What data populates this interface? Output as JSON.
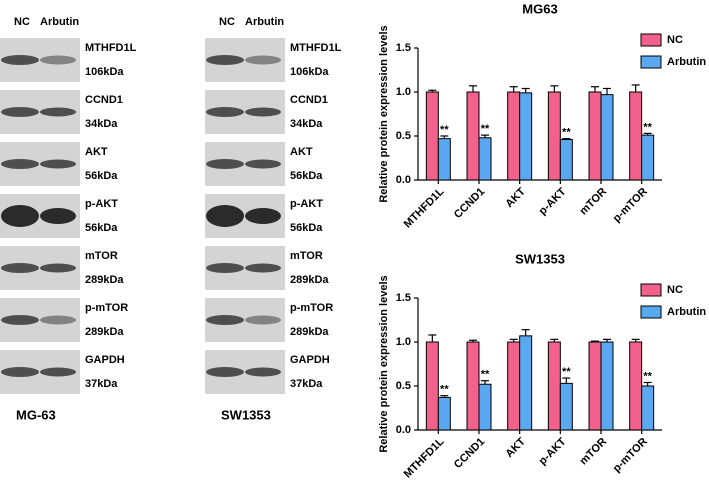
{
  "blots": [
    {
      "label": "MG-63",
      "lanes": [
        "NC",
        "Arbutin"
      ],
      "rows": [
        {
          "protein": "MTHFD1L",
          "size": "106kDa"
        },
        {
          "protein": "CCND1",
          "size": "34kDa"
        },
        {
          "protein": "AKT",
          "size": "56kDa"
        },
        {
          "protein": "p-AKT",
          "size": "56kDa"
        },
        {
          "protein": "mTOR",
          "size": "289kDa"
        },
        {
          "protein": "p-mTOR",
          "size": "289kDa"
        },
        {
          "protein": "GAPDH",
          "size": "37kDa"
        }
      ]
    },
    {
      "label": "SW1353",
      "lanes": [
        "NC",
        "Arbutin"
      ],
      "rows": [
        {
          "protein": "MTHFD1L",
          "size": "106kDa"
        },
        {
          "protein": "CCND1",
          "size": "34kDa"
        },
        {
          "protein": "AKT",
          "size": "56kDa"
        },
        {
          "protein": "p-AKT",
          "size": "56kDa"
        },
        {
          "protein": "mTOR",
          "size": "289kDa"
        },
        {
          "protein": "p-mTOR",
          "size": "289kDa"
        },
        {
          "protein": "GAPDH",
          "size": "37kDa"
        }
      ]
    }
  ],
  "chart_data": [
    {
      "type": "bar",
      "title": "MG63",
      "y_label": "Relative protein expression levels",
      "categories": [
        "MTHFD1L",
        "CCND1",
        "AKT",
        "p-AKT",
        "mTOR",
        "p-mTOR"
      ],
      "series": [
        {
          "name": "NC",
          "color": "#f2618c",
          "values": [
            1.0,
            1.0,
            1.0,
            1.0,
            1.0,
            1.0
          ],
          "errors": [
            0.02,
            0.07,
            0.06,
            0.07,
            0.06,
            0.08
          ]
        },
        {
          "name": "Arbutin",
          "color": "#5aa8ef",
          "values": [
            0.47,
            0.48,
            0.99,
            0.46,
            0.97,
            0.51
          ],
          "errors": [
            0.03,
            0.03,
            0.05,
            0.01,
            0.07,
            0.02
          ],
          "significance": [
            "**",
            "**",
            null,
            "**",
            null,
            "**"
          ]
        }
      ],
      "ylim": [
        0,
        1.5
      ],
      "yticks": [
        {
          "value": 0,
          "label": "0.0"
        },
        0.5,
        {
          "value": 1,
          "label": "1.0"
        },
        1.5
      ],
      "legend": "top-right"
    },
    {
      "type": "bar",
      "title": "SW1353",
      "y_label": "Relative protein expression levels",
      "categories": [
        "MTHFD1L",
        "CCND1",
        "AKT",
        "p-AKT",
        "mTOR",
        "p-mTOR"
      ],
      "series": [
        {
          "name": "NC",
          "color": "#f2618c",
          "values": [
            1.0,
            1.0,
            1.0,
            1.0,
            1.0,
            1.0
          ],
          "errors": [
            0.08,
            0.02,
            0.03,
            0.03,
            0.01,
            0.03
          ]
        },
        {
          "name": "Arbutin",
          "color": "#5aa8ef",
          "values": [
            0.37,
            0.52,
            1.07,
            0.53,
            1.0,
            0.5
          ],
          "errors": [
            0.02,
            0.04,
            0.07,
            0.06,
            0.03,
            0.04
          ],
          "significance": [
            "**",
            "**",
            null,
            "**",
            null,
            "**"
          ]
        }
      ],
      "ylim": [
        0,
        1.5
      ],
      "yticks": [
        {
          "value": 0,
          "label": "0.0"
        },
        0.5,
        {
          "value": 1,
          "label": "1.0"
        },
        1.5
      ],
      "legend": "top-right"
    }
  ]
}
